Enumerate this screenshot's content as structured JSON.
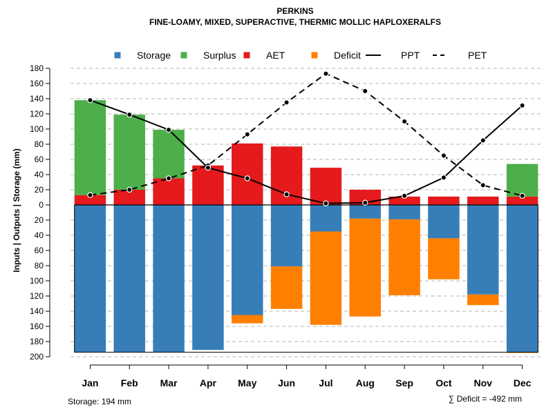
{
  "chart_data": {
    "type": "bar",
    "title": "PERKINS",
    "subtitle": "FINE-LOAMY, MIXED, SUPERACTIVE, THERMIC MOLLIC HAPLOXERALFS",
    "ylabel": "Inputs | Outputs | Storage    (mm)",
    "categories": [
      "Jan",
      "Feb",
      "Mar",
      "Apr",
      "May",
      "Jun",
      "Jul",
      "Aug",
      "Sep",
      "Oct",
      "Nov",
      "Dec"
    ],
    "yticks_upper": [
      "180",
      "160",
      "140",
      "120",
      "100",
      "80",
      "60",
      "40",
      "20",
      "0"
    ],
    "yticks_lower": [
      "20",
      "40",
      "60",
      "80",
      "100",
      "120",
      "140",
      "160",
      "180",
      "200"
    ],
    "ylim_upper": [
      0,
      180
    ],
    "ylim_lower": [
      0,
      200
    ],
    "legend": [
      {
        "name": "Storage",
        "type": "box",
        "color": "#377EB8"
      },
      {
        "name": "Surplus",
        "type": "box",
        "color": "#4DAF4A"
      },
      {
        "name": "AET",
        "type": "box",
        "color": "#E41A1C"
      },
      {
        "name": "Deficit",
        "type": "box",
        "color": "#FF7F00"
      },
      {
        "name": "PPT",
        "type": "line-solid",
        "color": "#000000"
      },
      {
        "name": "PET",
        "type": "line-dashed",
        "color": "#000000"
      }
    ],
    "series": [
      {
        "name": "AET",
        "values": [
          13,
          20,
          35,
          52,
          81,
          77,
          49,
          20,
          11,
          11,
          11,
          11
        ]
      },
      {
        "name": "Surplus",
        "values": [
          125,
          99,
          64,
          0,
          0,
          0,
          0,
          0,
          0,
          0,
          0,
          43
        ]
      },
      {
        "name": "Storage",
        "values": [
          194,
          194,
          194,
          191,
          145,
          81,
          35,
          18,
          19,
          44,
          118,
          194
        ]
      },
      {
        "name": "Deficit",
        "values": [
          0,
          0,
          0,
          0,
          11,
          56,
          123,
          129,
          100,
          54,
          14,
          1
        ]
      },
      {
        "name": "PPT",
        "values": [
          138,
          119,
          99,
          49,
          35,
          14,
          2,
          3,
          12,
          36,
          85,
          131
        ]
      },
      {
        "name": "PET",
        "values": [
          13,
          20,
          35,
          52,
          93,
          135,
          173,
          150,
          110,
          65,
          26,
          12
        ]
      }
    ],
    "storage_capacity": 194,
    "annotations": {
      "storage": "Storage: 194 mm",
      "deficit": "∑ Deficit = -492 mm"
    },
    "colors": {
      "storage": "#377EB8",
      "surplus": "#4DAF4A",
      "aet": "#E41A1C",
      "deficit": "#FF7F00",
      "grid": "#b3b3b3"
    }
  }
}
